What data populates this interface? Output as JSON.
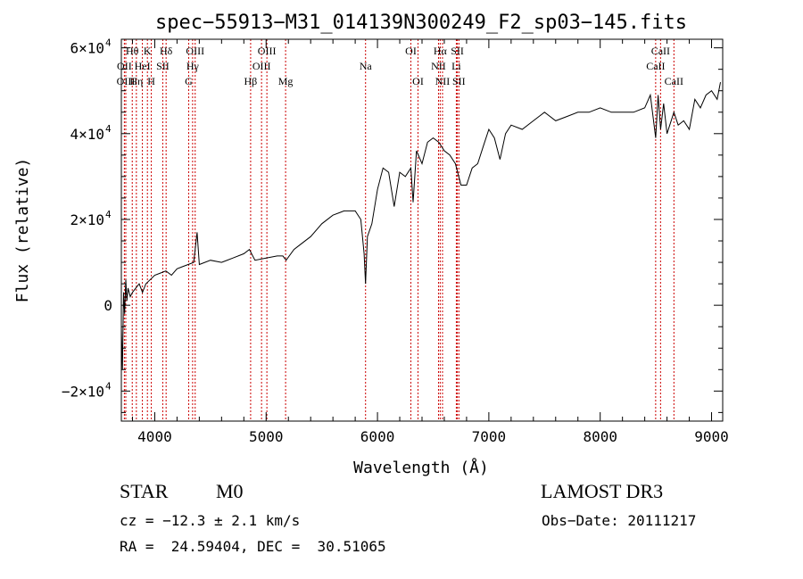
{
  "chart_data": {
    "type": "line",
    "title": "spec−55913−M31_014139N300249_F2_sp03−145.fits",
    "xlabel": "Wavelength (Å)",
    "ylabel": "Flux (relative)",
    "xlim": [
      3700,
      9100
    ],
    "ylim": [
      -27000,
      62000
    ],
    "xticks": [
      4000,
      5000,
      6000,
      7000,
      8000,
      9000
    ],
    "xtick_labels": [
      "4000",
      "5000",
      "6000",
      "7000",
      "8000",
      "9000"
    ],
    "yticks": [
      -20000,
      0,
      20000,
      40000,
      60000
    ],
    "ytick_labels": [
      {
        "mantissa": "−2×10",
        "exp": "4"
      },
      {
        "mantissa": "0",
        "exp": ""
      },
      {
        "mantissa": "2×10",
        "exp": "4"
      },
      {
        "mantissa": "4×10",
        "exp": "4"
      },
      {
        "mantissa": "6×10",
        "exp": "4"
      }
    ],
    "grid": false,
    "line_color": "#000000",
    "marker_color": "#cc0000",
    "spectral_lines": [
      {
        "label": "Hθ",
        "wavelength": 3798,
        "row": 1
      },
      {
        "label": "OII",
        "wavelength": 3727,
        "row": 2
      },
      {
        "label": "OIII",
        "wavelength": 3740,
        "row": 3
      },
      {
        "label": "K",
        "wavelength": 3934,
        "row": 1
      },
      {
        "label": "H",
        "wavelength": 3969,
        "row": 3
      },
      {
        "label": "HeI",
        "wavelength": 3889,
        "row": 2
      },
      {
        "label": "Hη",
        "wavelength": 3835,
        "row": 3
      },
      {
        "label": "SII",
        "wavelength": 4072,
        "row": 2
      },
      {
        "label": "Hδ",
        "wavelength": 4102,
        "row": 1
      },
      {
        "label": "OIII",
        "wavelength": 4363,
        "row": 1
      },
      {
        "label": "Hγ",
        "wavelength": 4340,
        "row": 2
      },
      {
        "label": "G",
        "wavelength": 4305,
        "row": 3
      },
      {
        "label": "Hβ",
        "wavelength": 4861,
        "row": 3
      },
      {
        "label": "OIII",
        "wavelength": 5007,
        "row": 1
      },
      {
        "label": "OIII",
        "wavelength": 4959,
        "row": 2
      },
      {
        "label": "Mg",
        "wavelength": 5175,
        "row": 3
      },
      {
        "label": "Na",
        "wavelength": 5893,
        "row": 2
      },
      {
        "label": "OI",
        "wavelength": 6300,
        "row": 1
      },
      {
        "label": "OI",
        "wavelength": 6364,
        "row": 3
      },
      {
        "label": "Hα",
        "wavelength": 6563,
        "row": 1
      },
      {
        "label": "NII",
        "wavelength": 6548,
        "row": 2
      },
      {
        "label": "NII",
        "wavelength": 6584,
        "row": 3
      },
      {
        "label": "SII",
        "wavelength": 6717,
        "row": 1
      },
      {
        "label": "Li",
        "wavelength": 6708,
        "row": 2
      },
      {
        "label": "SII",
        "wavelength": 6731,
        "row": 3
      },
      {
        "label": "CaII",
        "wavelength": 8542,
        "row": 1
      },
      {
        "label": "CaII",
        "wavelength": 8498,
        "row": 2
      },
      {
        "label": "CaII",
        "wavelength": 8662,
        "row": 3
      }
    ],
    "series": [
      {
        "x": [
          3700,
          3710,
          3720,
          3730,
          3740,
          3750,
          3760,
          3780,
          3800,
          3830,
          3860,
          3890,
          3920,
          3960,
          4000,
          4050,
          4100,
          4150,
          4200,
          4250,
          4300,
          4350,
          4380,
          4400,
          4500,
          4600,
          4700,
          4800,
          4850,
          4900,
          5000,
          5100,
          5150,
          5180,
          5250,
          5300,
          5400,
          5500,
          5600,
          5700,
          5800,
          5850,
          5880,
          5893,
          5910,
          5950,
          6000,
          6050,
          6100,
          6150,
          6200,
          6250,
          6300,
          6320,
          6350,
          6400,
          6450,
          6500,
          6550,
          6600,
          6650,
          6700,
          6750,
          6800,
          6850,
          6900,
          6950,
          7000,
          7050,
          7100,
          7150,
          7200,
          7300,
          7400,
          7500,
          7600,
          7700,
          7800,
          7900,
          8000,
          8100,
          8200,
          8300,
          8400,
          8450,
          8498,
          8520,
          8542,
          8570,
          8600,
          8662,
          8700,
          8750,
          8800,
          8850,
          8900,
          8950,
          9000,
          9050,
          9080
        ],
        "y": [
          -5000,
          -15000,
          3000,
          -2000,
          6000,
          1000,
          4000,
          2000,
          3000,
          4000,
          5000,
          3000,
          5000,
          6000,
          7000,
          7500,
          8000,
          7000,
          8500,
          9000,
          9500,
          10000,
          17000,
          9500,
          10500,
          10000,
          11000,
          12000,
          13000,
          10500,
          11000,
          11500,
          11500,
          10500,
          13000,
          14000,
          16000,
          19000,
          21000,
          22000,
          22000,
          20000,
          12000,
          5000,
          16000,
          19000,
          27000,
          32000,
          31000,
          23000,
          31000,
          30000,
          32000,
          24000,
          36000,
          33000,
          38000,
          39000,
          38000,
          36000,
          35000,
          33000,
          28000,
          28000,
          32000,
          33000,
          37000,
          41000,
          39000,
          34000,
          40000,
          42000,
          41000,
          43000,
          45000,
          43000,
          44000,
          45000,
          45000,
          46000,
          45000,
          45000,
          45000,
          46000,
          49000,
          39000,
          49000,
          41000,
          47000,
          40000,
          45000,
          42000,
          43000,
          41000,
          48000,
          46000,
          49000,
          50000,
          48000,
          52000
        ]
      }
    ]
  },
  "info": {
    "object_class": "STAR",
    "subclass": "M0",
    "survey": "LAMOST DR3",
    "cz": "cz = −12.3 ± 2.1 km/s",
    "obs_date": "Obs−Date: 20111217",
    "coords": "RA =  24.59404, DEC =  30.51065"
  }
}
